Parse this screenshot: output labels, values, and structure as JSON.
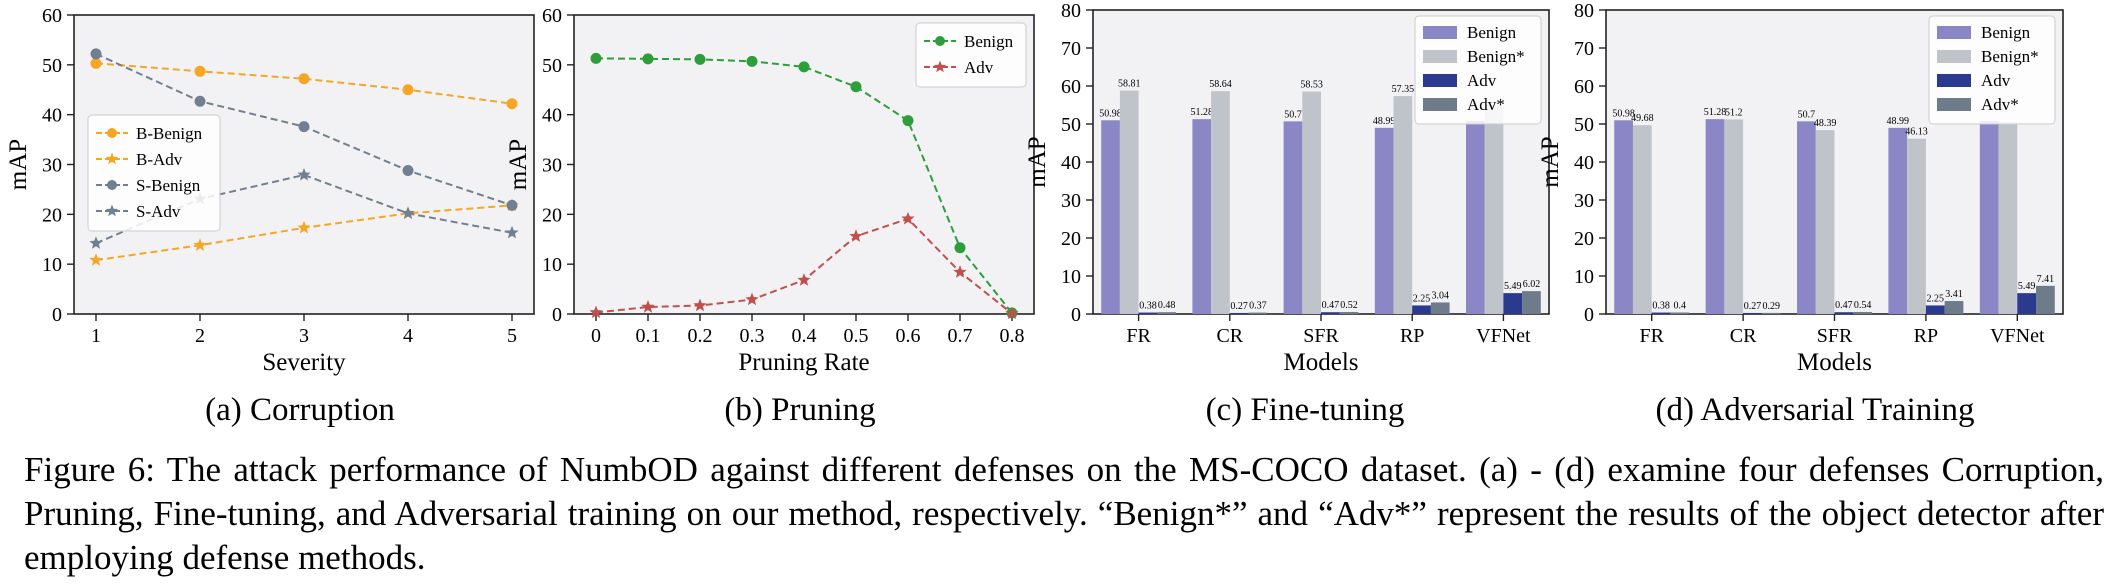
{
  "chart_data": [
    {
      "type": "line",
      "title": "",
      "xlabel": "Severity",
      "ylabel": "mAP",
      "x": [
        1,
        2,
        3,
        4,
        5
      ],
      "xticks": [
        "1",
        "2",
        "3",
        "4",
        "5"
      ],
      "ylim": [
        0,
        60
      ],
      "yticks": [
        "0",
        "10",
        "20",
        "30",
        "40",
        "50",
        "60"
      ],
      "grid": false,
      "legend": "center-left",
      "series": [
        {
          "name": "B-Benign",
          "color": "#F5A623",
          "dash": "dashed",
          "marker": "circle",
          "values": [
            50.3,
            48.7,
            47.2,
            45.0,
            42.2
          ]
        },
        {
          "name": "B-Adv",
          "color": "#F5A623",
          "dash": "dashed",
          "marker": "star",
          "values": [
            10.8,
            13.8,
            17.3,
            20.2,
            21.8
          ]
        },
        {
          "name": "S-Benign",
          "color": "#708090",
          "dash": "dashed",
          "marker": "circle",
          "values": [
            52.2,
            42.7,
            37.6,
            28.8,
            21.8
          ]
        },
        {
          "name": "S-Adv",
          "color": "#708090",
          "dash": "dashed",
          "marker": "star",
          "values": [
            14.2,
            23.1,
            27.9,
            20.2,
            16.3
          ]
        }
      ],
      "caption": "(a) Corruption"
    },
    {
      "type": "line",
      "title": "",
      "xlabel": "Pruning Rate",
      "ylabel": "mAP",
      "x": [
        0,
        0.1,
        0.2,
        0.3,
        0.4,
        0.5,
        0.6,
        0.7,
        0.8
      ],
      "xticks": [
        "0",
        "0.1",
        "0.2",
        "0.3",
        "0.4",
        "0.5",
        "0.6",
        "0.7",
        "0.8"
      ],
      "ylim": [
        0,
        60
      ],
      "yticks": [
        "0",
        "10",
        "20",
        "30",
        "40",
        "50",
        "60"
      ],
      "grid": false,
      "legend": "top-right",
      "series": [
        {
          "name": "Benign",
          "color": "#2E9E3A",
          "dash": "dashed",
          "marker": "circle",
          "values": [
            51.3,
            51.2,
            51.1,
            50.7,
            49.6,
            45.6,
            38.8,
            13.3,
            0.2
          ]
        },
        {
          "name": "Adv",
          "color": "#C0504D",
          "dash": "dashed",
          "marker": "star",
          "values": [
            0.3,
            1.4,
            1.7,
            2.9,
            6.8,
            15.6,
            19.1,
            8.4,
            0.1
          ]
        }
      ],
      "caption": "(b) Pruning"
    },
    {
      "type": "bar",
      "title": "",
      "xlabel": "Models",
      "ylabel": "mAP",
      "categories": [
        "FR",
        "CR",
        "SFR",
        "RP",
        "VFNet"
      ],
      "ylim": [
        0,
        80
      ],
      "yticks": [
        "0",
        "10",
        "20",
        "30",
        "40",
        "50",
        "60",
        "70",
        "80"
      ],
      "grid": false,
      "legend": "top-right",
      "series": [
        {
          "name": "Benign",
          "color": "#8B87C6",
          "values": [
            50.98,
            51.28,
            50.7,
            48.99,
            50.8
          ],
          "labels": [
            "50.98",
            "51.28",
            "50.7",
            "48.99",
            ""
          ]
        },
        {
          "name": "Benign*",
          "color": "#BFC4CA",
          "values": [
            58.81,
            58.64,
            58.53,
            57.35,
            55.0
          ],
          "labels": [
            "58.81",
            "58.64",
            "58.53",
            "57.35",
            ""
          ]
        },
        {
          "name": "Adv",
          "color": "#2B3A8C",
          "values": [
            0.38,
            0.27,
            0.47,
            2.25,
            5.49
          ],
          "labels": [
            "0.38",
            "0.27",
            "0.47",
            "2.25",
            "5.49"
          ]
        },
        {
          "name": "Adv*",
          "color": "#6E7B8B",
          "values": [
            0.48,
            0.37,
            0.52,
            3.04,
            6.02
          ],
          "labels": [
            "0.48",
            "0.37",
            "0.52",
            "3.04",
            "6.02"
          ]
        }
      ],
      "caption": "(c) Fine-tuning"
    },
    {
      "type": "bar",
      "title": "",
      "xlabel": "Models",
      "ylabel": "mAP",
      "categories": [
        "FR",
        "CR",
        "SFR",
        "RP",
        "VFNet"
      ],
      "ylim": [
        0,
        80
      ],
      "yticks": [
        "0",
        "10",
        "20",
        "30",
        "40",
        "50",
        "60",
        "70",
        "80"
      ],
      "grid": false,
      "legend": "top-right",
      "series": [
        {
          "name": "Benign",
          "color": "#8B87C6",
          "values": [
            50.98,
            51.28,
            50.7,
            48.99,
            50.8
          ],
          "labels": [
            "50.98",
            "51.28",
            "50.7",
            "48.99",
            ""
          ]
        },
        {
          "name": "Benign*",
          "color": "#BFC4CA",
          "values": [
            49.68,
            51.2,
            48.39,
            46.13,
            50.6
          ],
          "labels": [
            "49.68",
            "51.2",
            "48.39",
            "46.13",
            ""
          ]
        },
        {
          "name": "Adv",
          "color": "#2B3A8C",
          "values": [
            0.38,
            0.27,
            0.47,
            2.25,
            5.49
          ],
          "labels": [
            "0.38",
            "0.27",
            "0.47",
            "2.25",
            "5.49"
          ]
        },
        {
          "name": "Adv*",
          "color": "#6E7B8B",
          "values": [
            0.4,
            0.29,
            0.54,
            3.41,
            7.41
          ],
          "labels": [
            "0.4",
            "0.29",
            "0.54",
            "3.41",
            "7.41"
          ]
        }
      ],
      "caption": "(d) Adversarial Training"
    }
  ],
  "figure_caption": "Figure 6: The attack performance of NumbOD against different defenses on the MS-COCO dataset. (a) - (d) examine four defenses Corruption, Pruning, Fine-tuning, and Adversarial training on our method, respectively. “Benign*” and “Adv*” represent the results of the object detector after employing defense methods."
}
